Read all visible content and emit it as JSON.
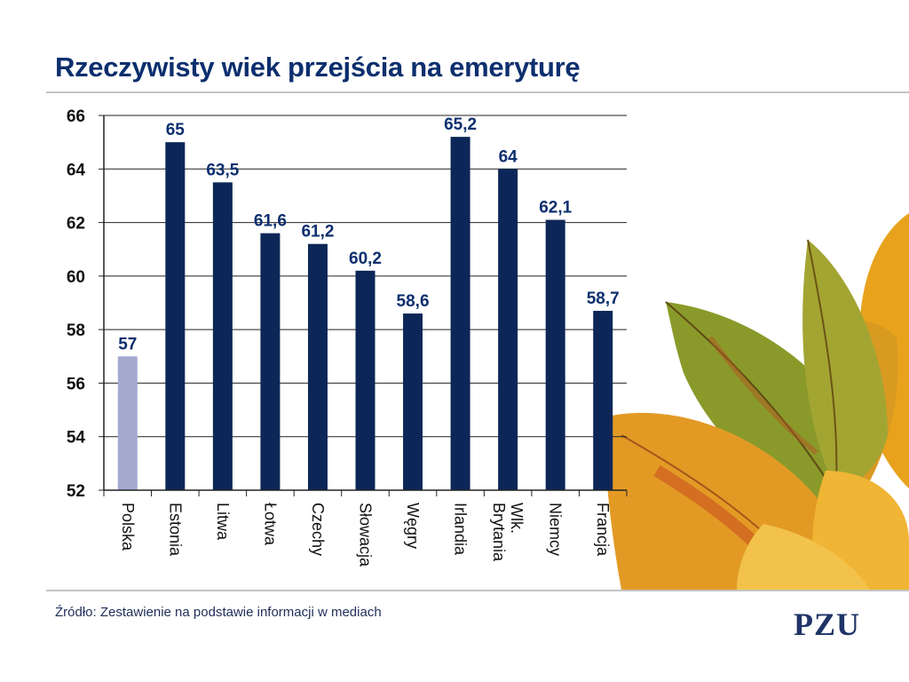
{
  "slide": {
    "title": "Rzeczywisty wiek przejścia na emeryturę",
    "source": "Źródło: Zestawienie na podstawie informacji w mediach",
    "logo_text": "PZU"
  },
  "chart_data": {
    "type": "bar",
    "title": "Rzeczywisty wiek przejścia na emeryturę",
    "xlabel": "",
    "ylabel": "",
    "categories": [
      "Polska",
      "Estonia",
      "Litwa",
      "Łotwa",
      "Czechy",
      "Słowacja",
      "Węgry",
      "Irlandia",
      "Wlk. Brytania",
      "Niemcy",
      "Francja"
    ],
    "values": [
      57,
      65,
      63.5,
      61.6,
      61.2,
      60.2,
      58.6,
      65.2,
      64,
      62.1,
      58.7
    ],
    "value_labels": [
      "57",
      "65",
      "63,5",
      "61,6",
      "61,2",
      "60,2",
      "58,6",
      "65,2",
      "64",
      "62,1",
      "58,7"
    ],
    "ylim": [
      52,
      66
    ],
    "yticks": [
      "52",
      "54",
      "56",
      "58",
      "60",
      "62",
      "64",
      "66"
    ],
    "grid": true,
    "legend": "none",
    "colors": {
      "highlight": "#a3a9cf",
      "bar": "#0c2757",
      "label": "#0c2f6e",
      "title": "#0c2f6e",
      "grid": "#222222"
    },
    "highlighted_category": "Polska"
  },
  "decoration": {
    "image": "autumn-leaves"
  }
}
